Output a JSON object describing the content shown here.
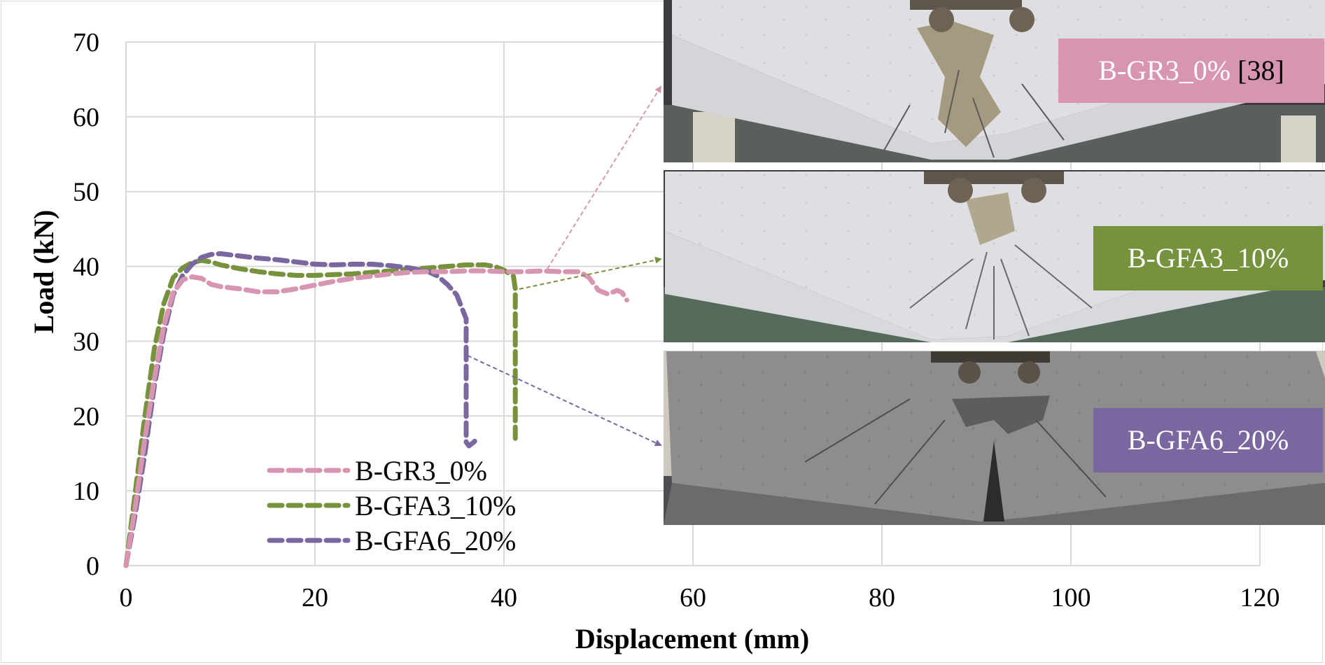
{
  "chart_data": {
    "type": "line",
    "xlabel": "Displacement (mm)",
    "ylabel": "Load (kN)",
    "xlim": [
      0,
      120
    ],
    "ylim": [
      0,
      70
    ],
    "xticks": [
      0,
      20,
      40,
      60,
      80,
      100,
      120
    ],
    "yticks": [
      0,
      10,
      20,
      30,
      40,
      50,
      60,
      70
    ],
    "grid": true,
    "legend": "bottom-left",
    "series": [
      {
        "name": "B-GR3_0%",
        "color": "#d895b2",
        "x": [
          0,
          1,
          2,
          3,
          4,
          5,
          6,
          7,
          8,
          9,
          10,
          12,
          14,
          16,
          18,
          20,
          22,
          24,
          26,
          28,
          30,
          32,
          34,
          36,
          38,
          40,
          42,
          44,
          46,
          48,
          49,
          50,
          51,
          52,
          52.5,
          53
        ],
        "y": [
          0,
          8,
          17,
          25,
          32,
          36.5,
          38.2,
          38.6,
          38.4,
          37.6,
          37.3,
          37.0,
          36.6,
          36.6,
          37.0,
          37.5,
          38.0,
          38.4,
          38.7,
          39.0,
          39.2,
          39.3,
          39.3,
          39.4,
          39.4,
          39.3,
          39.3,
          39.4,
          39.3,
          39.3,
          38.5,
          36.8,
          36.3,
          36.8,
          36.5,
          35.5
        ]
      },
      {
        "name": "B-GFA3_10%",
        "color": "#76923c",
        "x": [
          0,
          1,
          2,
          3,
          4,
          5,
          6,
          7,
          8,
          9,
          10,
          12,
          14,
          16,
          18,
          20,
          22,
          24,
          26,
          28,
          30,
          32,
          34,
          36,
          38,
          39,
          40,
          41,
          41.2,
          41.2,
          41.2
        ],
        "y": [
          0,
          10,
          20,
          29,
          35,
          38.5,
          39.8,
          40.5,
          40.8,
          40.6,
          40.2,
          39.7,
          39.3,
          39.0,
          38.8,
          38.8,
          38.9,
          39.0,
          39.2,
          39.4,
          39.6,
          39.8,
          40.0,
          40.2,
          40.2,
          40.0,
          39.5,
          38.7,
          37.0,
          28.0,
          17.0
        ]
      },
      {
        "name": "B-GFA6_20%",
        "color": "#7b67a0",
        "x": [
          0,
          1,
          2,
          3,
          4,
          5,
          6,
          7,
          8,
          9,
          10,
          12,
          14,
          16,
          18,
          20,
          22,
          24,
          26,
          28,
          30,
          32,
          33,
          34,
          35,
          36,
          36,
          36,
          36.3,
          36.8,
          37.2
        ],
        "y": [
          0,
          7,
          15,
          24,
          31,
          36.2,
          38.8,
          40.3,
          41.2,
          41.6,
          41.7,
          41.4,
          41.1,
          40.9,
          40.6,
          40.3,
          40.2,
          40.3,
          40.3,
          40.1,
          39.8,
          39.3,
          38.7,
          37.6,
          36.2,
          33.0,
          25.0,
          16.5,
          16.0,
          16.5,
          17.0
        ]
      }
    ]
  },
  "photos": [
    {
      "label": "B-GR3_0%",
      "ref": "[38]",
      "color": "#d895b2"
    },
    {
      "label": "B-GFA3_10%",
      "ref": "",
      "color": "#76923c"
    },
    {
      "label": "B-GFA6_20%",
      "ref": "",
      "color": "#7b67a0"
    }
  ]
}
